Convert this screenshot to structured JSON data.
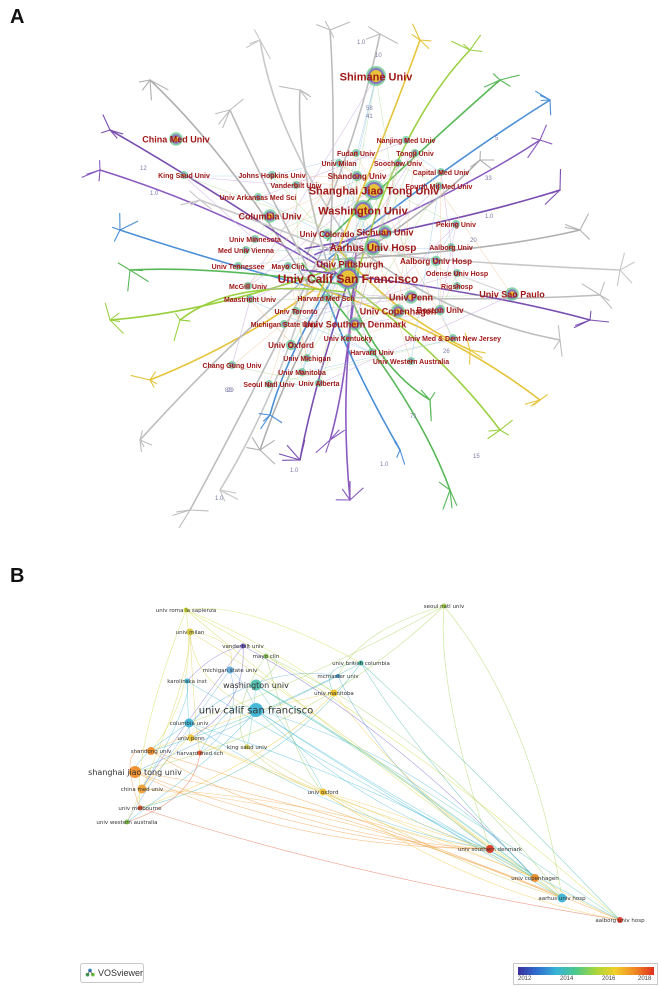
{
  "panel_a": {
    "letter": "A",
    "labels": [
      {
        "text": "Shimane Univ",
        "size": 11
      },
      {
        "text": "China Med Univ",
        "size": 9
      },
      {
        "text": "Nanjing Med Univ",
        "size": 7
      },
      {
        "text": "Fudan Univ",
        "size": 7
      },
      {
        "text": "Tongji Univ",
        "size": 7
      },
      {
        "text": "Univ Milan",
        "size": 7
      },
      {
        "text": "Soochow Univ",
        "size": 7
      },
      {
        "text": "King Saud Univ",
        "size": 7
      },
      {
        "text": "Johns Hopkins Univ",
        "size": 7
      },
      {
        "text": "Shandong Univ",
        "size": 8
      },
      {
        "text": "Capital Med Univ",
        "size": 7
      },
      {
        "text": "Vanderbilt Univ",
        "size": 7
      },
      {
        "text": "Shanghai Jiao Tong Univ",
        "size": 11
      },
      {
        "text": "Univ Arkansas Med Sci",
        "size": 7
      },
      {
        "text": "Fourth Mil Med Univ",
        "size": 7
      },
      {
        "text": "Washington Univ",
        "size": 11
      },
      {
        "text": "Columbia Univ",
        "size": 9
      },
      {
        "text": "Peking Univ",
        "size": 7
      },
      {
        "text": "Sichuan Univ",
        "size": 9
      },
      {
        "text": "Univ Minnesota",
        "size": 7
      },
      {
        "text": "Univ Colorado",
        "size": 8
      },
      {
        "text": "Aarhus Univ Hosp",
        "size": 10
      },
      {
        "text": "Aalborg Univ",
        "size": 7
      },
      {
        "text": "Med Univ Vienna",
        "size": 7
      },
      {
        "text": "Univ Pittsburgh",
        "size": 9
      },
      {
        "text": "Aalborg Univ Hosp",
        "size": 8
      },
      {
        "text": "Univ Tennessee",
        "size": 7
      },
      {
        "text": "Mayo Clin",
        "size": 7
      },
      {
        "text": "Univ Calif San Francisco",
        "size": 12
      },
      {
        "text": "Odense Univ Hosp",
        "size": 7
      },
      {
        "text": "McGill Univ",
        "size": 7
      },
      {
        "text": "Rigshosp",
        "size": 7
      },
      {
        "text": "Univ Sao Paulo",
        "size": 9
      },
      {
        "text": "Maastricht Univ",
        "size": 7
      },
      {
        "text": "Harvard Med Sch",
        "size": 7
      },
      {
        "text": "Univ Penn",
        "size": 9
      },
      {
        "text": "Univ Toronto",
        "size": 7
      },
      {
        "text": "Univ Copenhagen",
        "size": 9
      },
      {
        "text": "Boston Univ",
        "size": 8
      },
      {
        "text": "Michigan State Univ",
        "size": 7
      },
      {
        "text": "Univ Southern Denmark",
        "size": 9
      },
      {
        "text": "Univ Kentucky",
        "size": 7
      },
      {
        "text": "Univ Med & Dent New Jersey",
        "size": 7
      },
      {
        "text": "Univ Oxford",
        "size": 8
      },
      {
        "text": "Harvard Univ",
        "size": 7
      },
      {
        "text": "Chang Gung Univ",
        "size": 7
      },
      {
        "text": "Univ Michigan",
        "size": 7
      },
      {
        "text": "Univ Western Australia",
        "size": 7
      },
      {
        "text": "Univ Manitoba",
        "size": 7
      },
      {
        "text": "Univ Alberta",
        "size": 7
      },
      {
        "text": "Seoul Natl Univ",
        "size": 7
      }
    ],
    "edge_numbers": [
      "1.0",
      "10",
      "58",
      "41",
      "33",
      "1.0",
      "5",
      "1.0",
      "20",
      "26",
      "12",
      "1.0",
      "1.0",
      "82",
      "29",
      "71",
      "1.0",
      "15"
    ]
  },
  "panel_b": {
    "letter": "B",
    "nodes": [
      {
        "label": "univ roma la sapienza",
        "size": 5
      },
      {
        "label": "univ milan",
        "size": 6
      },
      {
        "label": "seoul natl univ",
        "size": 5
      },
      {
        "label": "vanderbilt univ",
        "size": 5
      },
      {
        "label": "mayo clin",
        "size": 5
      },
      {
        "label": "univ british columbia",
        "size": 5
      },
      {
        "label": "michigan state univ",
        "size": 6
      },
      {
        "label": "mcmaster univ",
        "size": 4.5
      },
      {
        "label": "karolinska inst",
        "size": 5
      },
      {
        "label": "washington univ",
        "size": 8
      },
      {
        "label": "univ manitoba",
        "size": 6
      },
      {
        "label": "univ calif san francisco",
        "size": 9.5
      },
      {
        "label": "columbia univ",
        "size": 7
      },
      {
        "label": "univ penn",
        "size": 6
      },
      {
        "label": "king saud univ",
        "size": 5
      },
      {
        "label": "shandong univ",
        "size": 6.5
      },
      {
        "label": "harvard med sch",
        "size": 5
      },
      {
        "label": "shanghai jiao tong univ",
        "size": 8.5
      },
      {
        "label": "china med univ",
        "size": 7
      },
      {
        "label": "univ oxford",
        "size": 6
      },
      {
        "label": "univ melbourne",
        "size": 5
      },
      {
        "label": "univ western australia",
        "size": 5
      },
      {
        "label": "univ southern denmark",
        "size": 6.5
      },
      {
        "label": "univ copenhagen",
        "size": 6.5
      },
      {
        "label": "aarhus univ hosp",
        "size": 7
      },
      {
        "label": "aalborg univ hosp",
        "size": 5.5
      }
    ],
    "vosviewer_label": "VOSviewer",
    "scale_ticks": [
      "2012",
      "2014",
      "2016",
      "2018"
    ],
    "scale_colors": [
      "#3a2f9e",
      "#2f6fd0",
      "#38b4d6",
      "#4cc98a",
      "#a7d63a",
      "#f2cf2a",
      "#f08a24",
      "#e0301e"
    ]
  }
}
